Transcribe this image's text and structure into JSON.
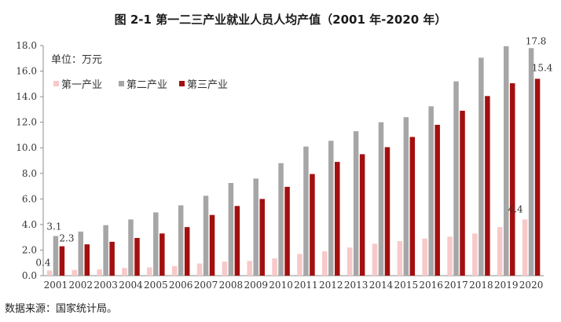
{
  "title": "图 2-1  第一二三产业就业人员人均产值（2001 年-2020 年）",
  "source": "数据来源：国家统计局。",
  "chart_data": {
    "type": "bar",
    "unit_label": "单位：万元",
    "categories": [
      "2001",
      "2002",
      "2003",
      "2004",
      "2005",
      "2006",
      "2007",
      "2008",
      "2009",
      "2010",
      "2011",
      "2012",
      "2013",
      "2014",
      "2015",
      "2016",
      "2017",
      "2018",
      "2019",
      "2020"
    ],
    "series": [
      {
        "name": "第一产业",
        "color": "#f7c9c9",
        "values": [
          0.4,
          0.45,
          0.5,
          0.6,
          0.65,
          0.75,
          0.95,
          1.1,
          1.15,
          1.35,
          1.7,
          1.9,
          2.2,
          2.5,
          2.7,
          2.9,
          3.05,
          3.3,
          3.8,
          4.4
        ]
      },
      {
        "name": "第二产业",
        "color": "#a6a6a6",
        "values": [
          3.1,
          3.45,
          3.95,
          4.4,
          4.95,
          5.5,
          6.25,
          7.25,
          7.6,
          8.8,
          10.1,
          10.55,
          11.3,
          12.0,
          12.4,
          13.25,
          15.2,
          17.05,
          17.95,
          17.8
        ]
      },
      {
        "name": "第三产业",
        "color": "#a30f0f",
        "values": [
          2.3,
          2.45,
          2.65,
          2.95,
          3.3,
          3.8,
          4.75,
          5.45,
          6.0,
          6.95,
          7.95,
          8.9,
          9.5,
          10.05,
          10.85,
          11.8,
          12.9,
          14.05,
          15.05,
          15.4
        ]
      }
    ],
    "data_labels": [
      {
        "series": 0,
        "index": 0,
        "text": "0.4"
      },
      {
        "series": 1,
        "index": 0,
        "text": "3.1"
      },
      {
        "series": 2,
        "index": 0,
        "text": "2.3"
      },
      {
        "series": 0,
        "index": 19,
        "text": "4.4"
      },
      {
        "series": 1,
        "index": 19,
        "text": "17.8"
      },
      {
        "series": 2,
        "index": 19,
        "text": "15.4"
      }
    ],
    "y_ticks": [
      "0.0",
      "2.0",
      "4.0",
      "6.0",
      "8.0",
      "10.0",
      "12.0",
      "14.0",
      "16.0",
      "18.0"
    ],
    "ylim": [
      0,
      18
    ],
    "grid": false,
    "legend_position": "top-left"
  }
}
